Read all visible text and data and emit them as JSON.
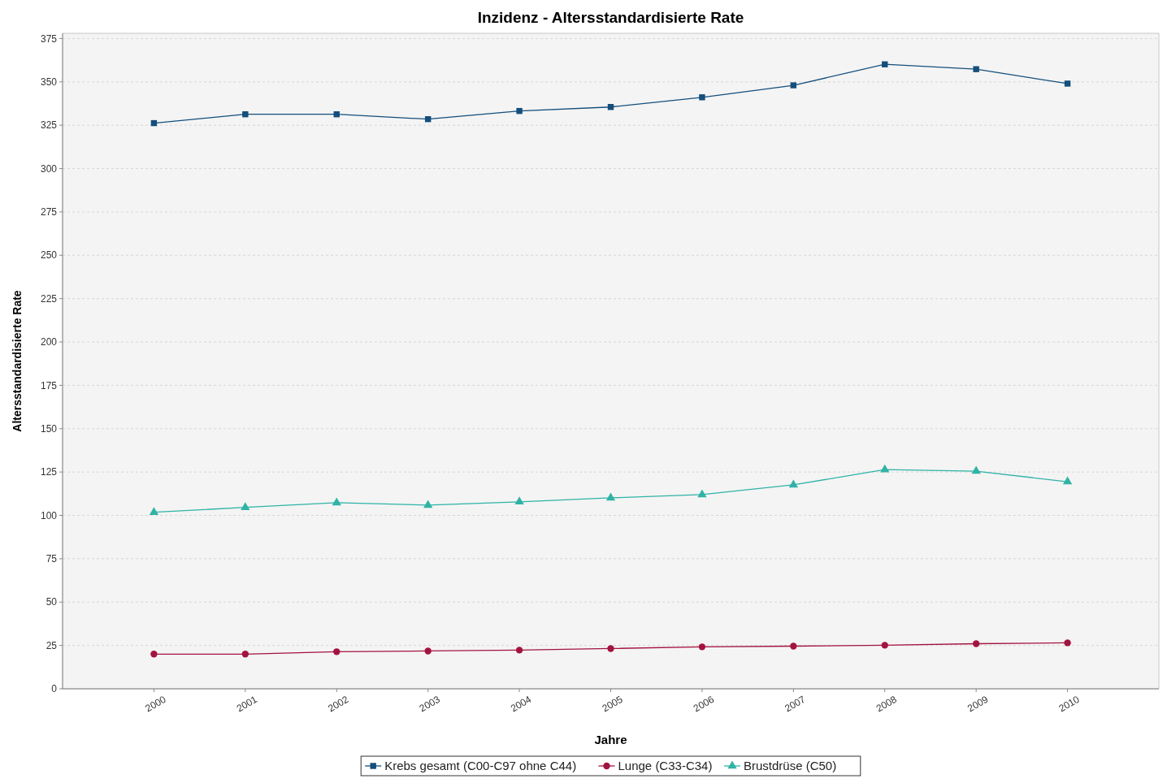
{
  "chart_data": {
    "type": "line",
    "title": "Inzidenz - Altersstandardisierte Rate",
    "xlabel": "Jahre",
    "ylabel": "Altersstandardisierte Rate",
    "categories": [
      "2000",
      "2001",
      "2002",
      "2003",
      "2004",
      "2005",
      "2006",
      "2007",
      "2008",
      "2009",
      "2010"
    ],
    "series": [
      {
        "name": "Krebs gesamt (C00-C97 ohne C44)",
        "color": "#134e7c",
        "marker": "square",
        "values": [
          326.2,
          331.3,
          331.3,
          328.5,
          333.2,
          335.5,
          341.1,
          348,
          360.1,
          357.3,
          349
        ]
      },
      {
        "name": "Lunge (C33-C34)",
        "color": "#a3133f",
        "marker": "circle",
        "values": [
          20,
          20,
          21.4,
          21.8,
          22.3,
          23.2,
          24.2,
          24.6,
          25.1,
          26,
          26.5
        ]
      },
      {
        "name": "Brustdrüse (C50)",
        "color": "#2fb3a6",
        "marker": "triangle",
        "values": [
          101.8,
          104.6,
          107.3,
          105.9,
          107.8,
          110.1,
          112,
          117.6,
          126.4,
          125.5,
          119.4
        ]
      }
    ],
    "ylim": [
      0,
      378
    ],
    "yticks": [
      0,
      25,
      50,
      75,
      100,
      125,
      150,
      175,
      200,
      225,
      250,
      275,
      300,
      325,
      350,
      375
    ],
    "grid": "y",
    "legend": "bottom",
    "line_style": "solid"
  }
}
